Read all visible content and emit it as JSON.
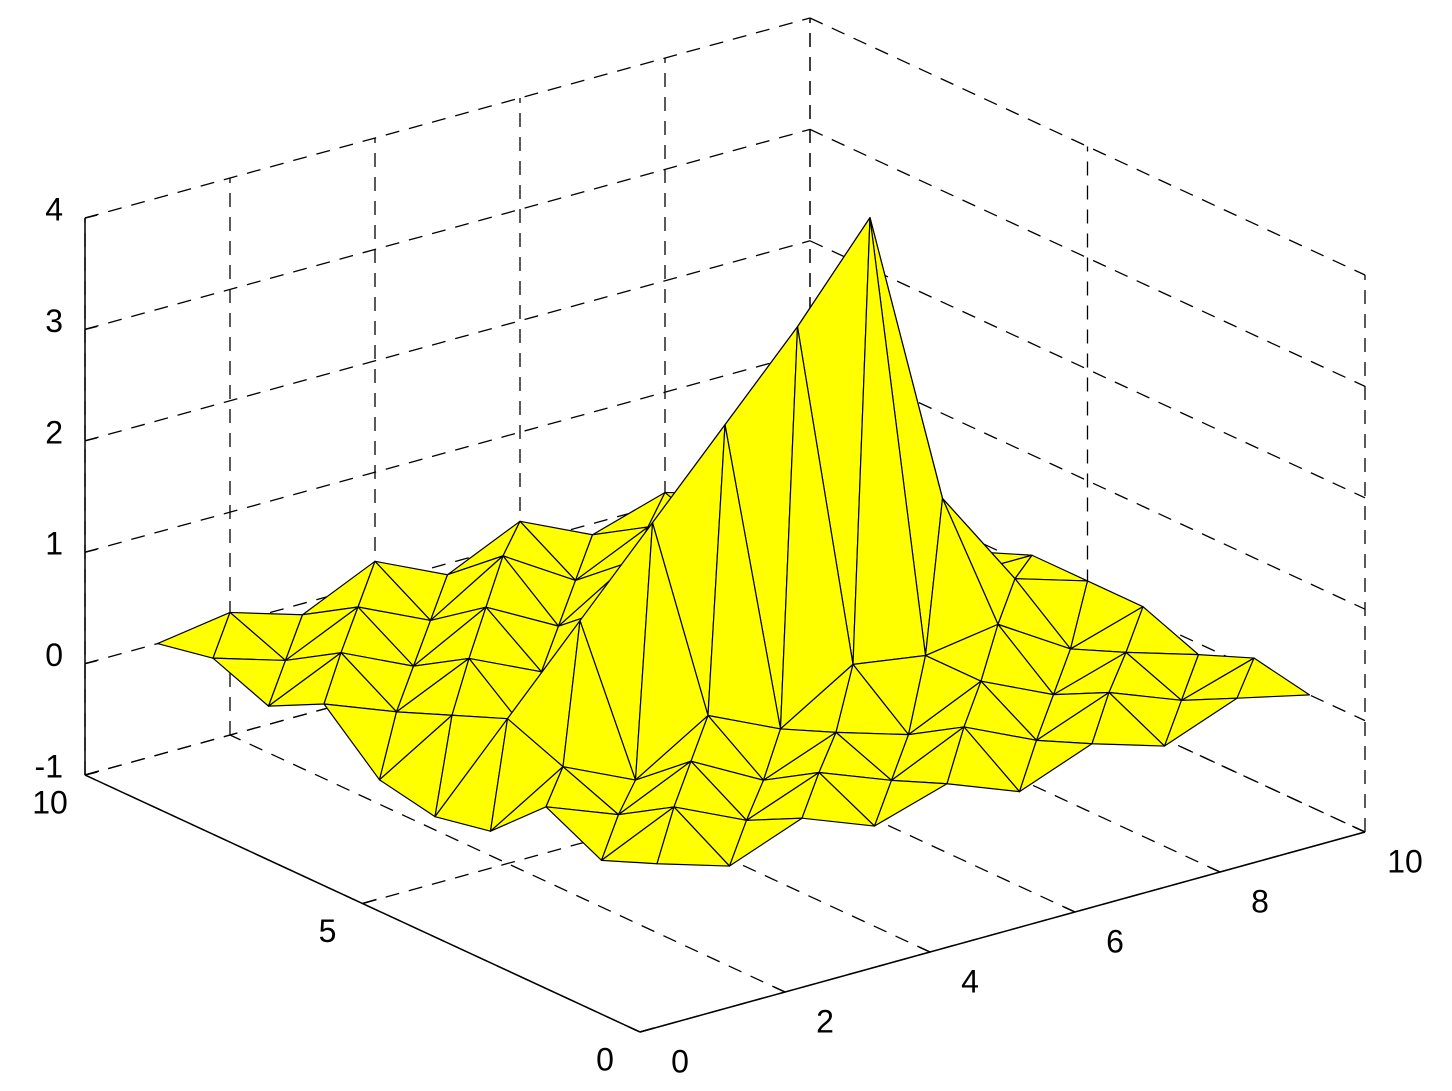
{
  "chart_data": {
    "type": "surface",
    "x": [
      1,
      2,
      3,
      4,
      5,
      6,
      7,
      8,
      9,
      10
    ],
    "y": [
      1,
      2,
      3,
      4,
      5,
      6,
      7,
      8,
      9,
      10
    ],
    "z": [
      [
        0.1,
        -0.1,
        0.15,
        -0.1,
        0.1,
        -0.15,
        0.1,
        -0.1,
        0.15,
        0.0
      ],
      [
        -0.1,
        0.2,
        -0.1,
        0.15,
        -0.1,
        0.2,
        -0.1,
        0.15,
        -0.1,
        0.1
      ],
      [
        0.15,
        -0.1,
        0.2,
        -0.15,
        0.1,
        -0.1,
        0.2,
        -0.1,
        0.1,
        -0.1
      ],
      [
        -0.3,
        0.1,
        -0.2,
        0.2,
        -0.1,
        0.3,
        0.2,
        0.3,
        -0.1,
        0.1
      ],
      [
        -0.4,
        0.3,
        1.0,
        1.7,
        2.4,
        3.1,
        3.9,
        1.2,
        0.3,
        0.1
      ],
      [
        -0.3,
        0.1,
        -0.2,
        0.2,
        0.0,
        0.3,
        0.4,
        0.5,
        0.1,
        0.1
      ],
      [
        0.15,
        -0.1,
        0.2,
        -0.1,
        0.3,
        0.0,
        0.2,
        -0.1,
        0.1,
        -0.1
      ],
      [
        -0.1,
        0.2,
        -0.1,
        0.25,
        -0.1,
        0.3,
        -0.1,
        0.2,
        -0.1,
        0.1
      ],
      [
        0.1,
        -0.1,
        0.2,
        -0.1,
        0.3,
        -0.1,
        0.2,
        -0.1,
        0.1,
        -0.1
      ],
      [
        0.0,
        0.1,
        -0.1,
        0.2,
        -0.1,
        0.2,
        -0.1,
        0.1,
        -0.1,
        0.0
      ]
    ],
    "color": "#ffff00",
    "back_color": "#00ffff",
    "xlim": [
      0,
      10
    ],
    "ylim": [
      0,
      10
    ],
    "zlim": [
      -1,
      4
    ],
    "xticks": [
      0,
      2,
      4,
      6,
      8,
      10
    ],
    "yticks": [
      0,
      5,
      10
    ],
    "zticks": [
      -1,
      0,
      1,
      2,
      3,
      4
    ],
    "grid": true
  }
}
